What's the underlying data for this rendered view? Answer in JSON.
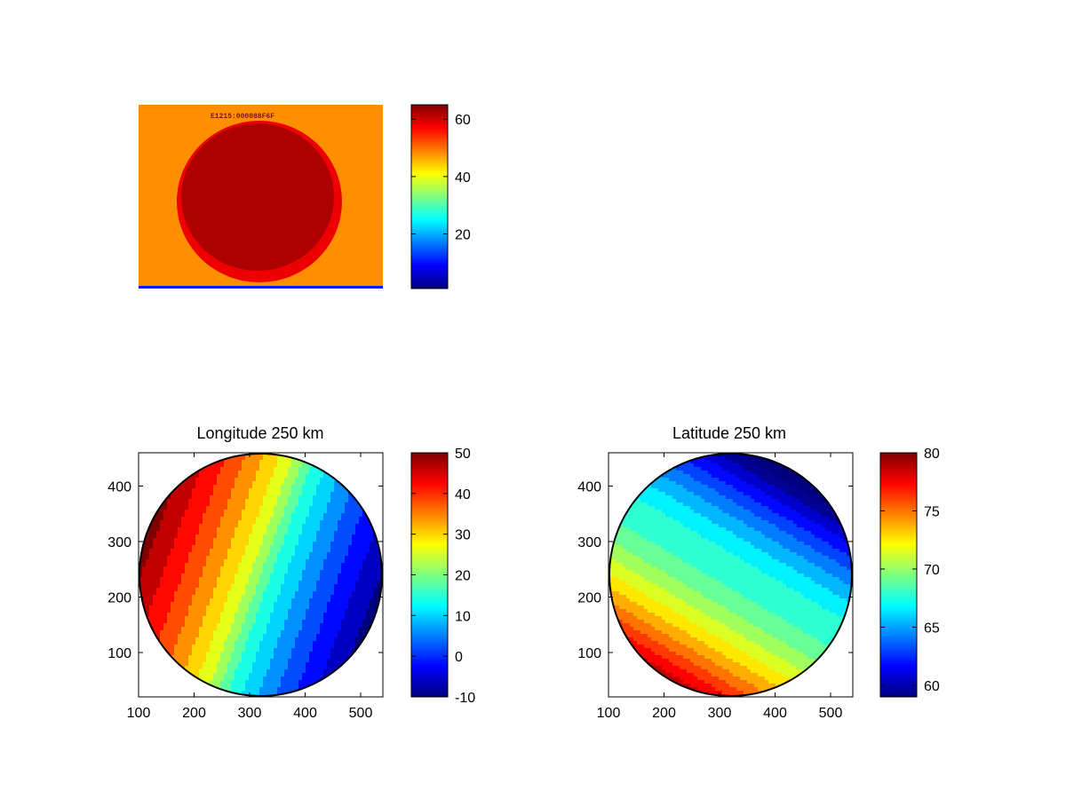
{
  "colors": {
    "jet": [
      "#00007f",
      "#0000ff",
      "#007fff",
      "#00ffff",
      "#7fff7f",
      "#ffff00",
      "#ff7f00",
      "#ff0000",
      "#7f0000"
    ],
    "contour": "#000000",
    "background": "#ffffff"
  },
  "chart_data": [
    {
      "id": "raw-image",
      "type": "heatmap",
      "title": "",
      "description_note": "",
      "image_overlay_text": "E1215:000088F6F",
      "colorbar": {
        "clim": [
          1,
          65
        ],
        "ticks": [
          20,
          40,
          60
        ],
        "tick_labels": [
          "20",
          "40",
          "60"
        ],
        "colormap": "jet"
      },
      "levels": {
        "disk": 62,
        "disk_edge": 58,
        "background": 48
      },
      "axes_visible": false
    },
    {
      "id": "longitude",
      "type": "heatmap",
      "title": "Longitude 250 km",
      "xlabel": "",
      "ylabel": "",
      "xlim": [
        100,
        540
      ],
      "ylim": [
        20,
        460
      ],
      "xticks": [
        100,
        200,
        300,
        400,
        500
      ],
      "xtick_labels": [
        "100",
        "200",
        "300",
        "400",
        "500"
      ],
      "yticks": [
        100,
        200,
        300,
        400
      ],
      "ytick_labels": [
        "100",
        "200",
        "300",
        "400"
      ],
      "disk": {
        "center": [
          320,
          240
        ],
        "radius": 220
      },
      "field": {
        "min": -10,
        "max": 50,
        "gradient_direction_deg": 20,
        "contour_step": 4
      },
      "colorbar": {
        "clim": [
          -10,
          50
        ],
        "ticks": [
          -10,
          0,
          10,
          20,
          30,
          40,
          50
        ],
        "tick_labels": [
          "-10",
          "0",
          "10",
          "20",
          "30",
          "40",
          "50"
        ],
        "colormap": "jet"
      }
    },
    {
      "id": "latitude",
      "type": "heatmap",
      "title": "Latitude 250 km",
      "xlabel": "",
      "ylabel": "",
      "xlim": [
        100,
        540
      ],
      "ylim": [
        20,
        460
      ],
      "xticks": [
        100,
        200,
        300,
        400,
        500
      ],
      "xtick_labels": [
        "100",
        "200",
        "300",
        "400",
        "500"
      ],
      "yticks": [
        100,
        200,
        300,
        400
      ],
      "ytick_labels": [
        "100",
        "200",
        "300",
        "400"
      ],
      "disk": {
        "center": [
          320,
          240
        ],
        "radius": 220
      },
      "field": {
        "min": 59,
        "max": 80,
        "contour_step": 1.2
      },
      "colorbar": {
        "clim": [
          59,
          80
        ],
        "ticks": [
          60,
          65,
          70,
          75,
          80
        ],
        "tick_labels": [
          "60",
          "65",
          "70",
          "75",
          "80"
        ],
        "colormap": "jet"
      }
    }
  ]
}
